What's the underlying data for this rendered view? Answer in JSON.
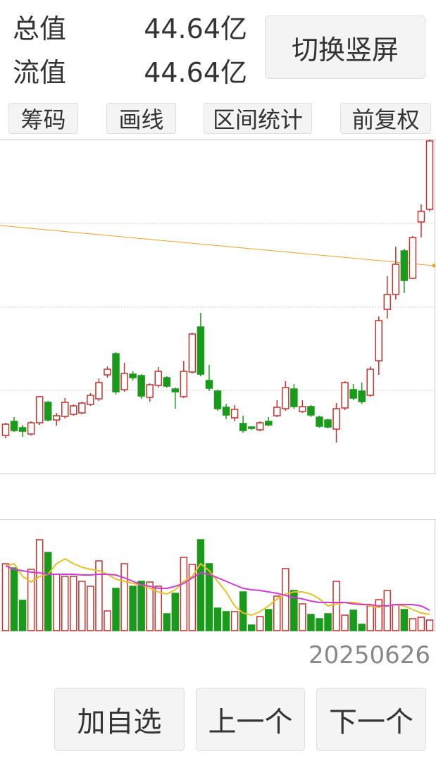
{
  "header": {
    "total_label": "总值",
    "total_value": "44.64亿",
    "float_label": "流值",
    "float_value": "44.64亿",
    "toggle_button": "切换竖屏"
  },
  "tabs": [
    "筹码",
    "画线",
    "区间统计",
    "前复权"
  ],
  "chart_data": [
    {
      "type": "candlestick",
      "ylim": [
        0,
        474
      ],
      "ygrid": [
        118,
        236,
        355
      ],
      "up_color": "#c9302c",
      "down_color": "#1a9a1a",
      "open": [
        54,
        74,
        65,
        56,
        72,
        101,
        76,
        81,
        84,
        86,
        98,
        106,
        140,
        170,
        119,
        141,
        139,
        108,
        125,
        136,
        120,
        109,
        144,
        208,
        132,
        117,
        94,
        79,
        71,
        66,
        62,
        74,
        82,
        92,
        120,
        88,
        95,
        80,
        76,
        63,
        93,
        119,
        117,
        111,
        160,
        233,
        254,
        316,
        277,
        357,
        375
      ],
      "close": [
        70,
        61,
        60,
        72,
        109,
        76,
        82,
        101,
        96,
        100,
        111,
        129,
        148,
        116,
        142,
        136,
        110,
        126,
        145,
        124,
        116,
        145,
        198,
        141,
        121,
        92,
        83,
        91,
        61,
        64,
        72,
        69,
        94,
        122,
        95,
        95,
        83,
        67,
        66,
        92,
        129,
        107,
        102,
        148,
        217,
        254,
        297,
        274,
        335,
        372,
        472
      ],
      "high": [
        72,
        80,
        69,
        74,
        110,
        103,
        86,
        107,
        98,
        102,
        114,
        135,
        152,
        172,
        157,
        145,
        141,
        128,
        151,
        138,
        122,
        160,
        200,
        228,
        154,
        119,
        99,
        97,
        82,
        67,
        74,
        80,
        104,
        131,
        127,
        104,
        97,
        82,
        78,
        100,
        131,
        127,
        129,
        152,
        223,
        280,
        322,
        319,
        337,
        382,
        474
      ],
      "low": [
        50,
        59,
        52,
        54,
        69,
        74,
        68,
        78,
        82,
        84,
        96,
        103,
        136,
        112,
        116,
        132,
        106,
        102,
        122,
        122,
        92,
        107,
        142,
        138,
        117,
        89,
        77,
        74,
        58,
        62,
        60,
        67,
        80,
        89,
        92,
        86,
        80,
        65,
        64,
        44,
        90,
        104,
        99,
        109,
        140,
        220,
        247,
        256,
        276,
        335,
        372
      ],
      "trendline": {
        "values": [
          352,
          295
        ],
        "color": "#f0a020"
      }
    },
    {
      "type": "volume",
      "ylim": [
        0,
        158
      ],
      "values": [
        95,
        89,
        43,
        87,
        129,
        111,
        80,
        77,
        77,
        70,
        63,
        99,
        28,
        60,
        95,
        63,
        70,
        69,
        63,
        24,
        53,
        104,
        94,
        129,
        95,
        32,
        27,
        27,
        55,
        8,
        20,
        30,
        49,
        88,
        57,
        38,
        23,
        17,
        24,
        70,
        22,
        29,
        9,
        35,
        44,
        57,
        37,
        30,
        17,
        19,
        15
      ],
      "series": [
        {
          "color": "#e8c020",
          "values": [
            92,
            95,
            77,
            69,
            77,
            80,
            95,
            102,
            95,
            90,
            87,
            85,
            80,
            73,
            70,
            67,
            65,
            60,
            55,
            52,
            58,
            70,
            77,
            95,
            85,
            70,
            55,
            35,
            25,
            22,
            27,
            35,
            45,
            52,
            55,
            55,
            52,
            45,
            35,
            38,
            40,
            40,
            38,
            35,
            33,
            35,
            37,
            35,
            30,
            25,
            23
          ]
        },
        {
          "color": "#d63ad6",
          "values": [
            92,
            87,
            85,
            83,
            82,
            80,
            80,
            80,
            80,
            79,
            79,
            80,
            80,
            79,
            75,
            70,
            65,
            63,
            60,
            60,
            63,
            67,
            75,
            82,
            80,
            75,
            70,
            65,
            60,
            58,
            57,
            55,
            53,
            50,
            47,
            45,
            42,
            40,
            40,
            40,
            40,
            38,
            37,
            37,
            35,
            35,
            37,
            37,
            37,
            35,
            29
          ]
        }
      ]
    }
  ],
  "date": "20250626",
  "buttons": [
    "加自选",
    "上一个",
    "下一个"
  ]
}
